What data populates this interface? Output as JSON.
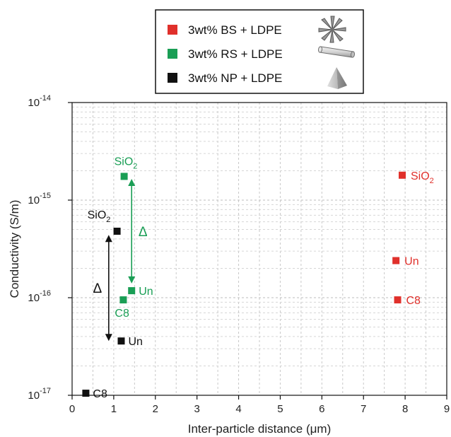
{
  "chart_data": {
    "type": "scatter",
    "xlabel": "Inter-particle distance (μm)",
    "ylabel": "Conductivity (S/m)",
    "xlim": [
      0,
      9
    ],
    "ylim": [
      1e-17,
      1e-14
    ],
    "y_scale": "log",
    "grid": true,
    "legend_position": "top-center",
    "x_ticks": [
      "0",
      "1",
      "2",
      "3",
      "4",
      "5",
      "6",
      "7",
      "8",
      "9"
    ],
    "y_ticks": [
      {
        "base": "10",
        "exp": "-17",
        "value": 1e-17
      },
      {
        "base": "10",
        "exp": "-16",
        "value": 1e-16
      },
      {
        "base": "10",
        "exp": "-15",
        "value": 1e-15
      },
      {
        "base": "10",
        "exp": "-14",
        "value": 1e-14
      }
    ],
    "series": [
      {
        "name": "3wt% BS  + LDPE",
        "color": "#e0302b",
        "legend_icon": "branched-star-particle",
        "points": [
          {
            "label": "SiO",
            "sub": "2",
            "x": 7.93,
            "y": 1.8e-15
          },
          {
            "label": "Un",
            "x": 7.78,
            "y": 2.4e-16
          },
          {
            "label": "C8",
            "x": 7.82,
            "y": 9.5e-17
          }
        ]
      },
      {
        "name": "3wt% RS  + LDPE",
        "color": "#1a9e55",
        "legend_icon": "rod-particle",
        "points": [
          {
            "label": "SiO",
            "sub": "2",
            "x": 1.25,
            "y": 1.75e-15
          },
          {
            "label": "Un",
            "x": 1.43,
            "y": 1.18e-16
          },
          {
            "label": "C8",
            "x": 1.23,
            "y": 9.5e-17
          }
        ]
      },
      {
        "name": "3wt% NP  + LDPE",
        "color": "#111111",
        "legend_icon": "pyramid-particle",
        "points": [
          {
            "label": "SiO",
            "sub": "2",
            "x": 1.08,
            "y": 4.8e-16
          },
          {
            "label": "Un",
            "x": 1.18,
            "y": 3.6e-17
          },
          {
            "label": "C8",
            "x": 0.33,
            "y": 1.05e-17
          }
        ]
      }
    ],
    "annotations": [
      {
        "text": "Δ",
        "color": "#1a9e55",
        "from_y": 1.65e-15,
        "to_y": 1.4e-16,
        "x": 1.43
      },
      {
        "text": "Δ",
        "color": "#111111",
        "from_y": 4.4e-16,
        "to_y": 3.6e-17,
        "x": 0.88
      }
    ]
  }
}
